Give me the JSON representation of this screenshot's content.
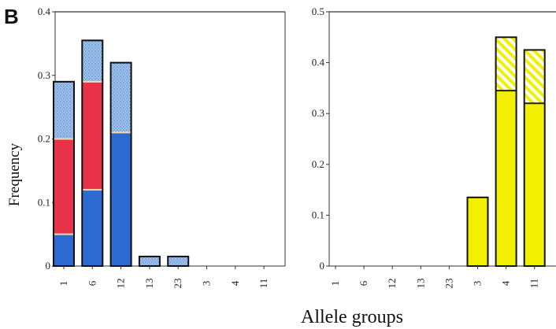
{
  "panel_label": "B",
  "chart_data": [
    {
      "type": "bar",
      "stacked": true,
      "categories": [
        "1",
        "6",
        "12",
        "13",
        "23",
        "3",
        "4",
        "11"
      ],
      "ylim": [
        0,
        0.4
      ],
      "yticks": [
        "0",
        "0.1",
        "0.2",
        "0.3",
        "0.4"
      ],
      "ylabel": "Frequency",
      "xlabel": "",
      "series": [
        {
          "color": "#2d6ad1",
          "pattern": "solid",
          "values": [
            0.05,
            0.12,
            0.21,
            0,
            0,
            0,
            0,
            0
          ]
        },
        {
          "color": "#e8324a",
          "pattern": "solid",
          "values": [
            0.15,
            0.17,
            0,
            0,
            0,
            0,
            0,
            0
          ]
        },
        {
          "color": "#8fb6e6",
          "pattern": "stipple",
          "values": [
            0.09,
            0.065,
            0.11,
            0.015,
            0.015,
            0,
            0,
            0
          ]
        }
      ]
    },
    {
      "type": "bar",
      "stacked": true,
      "categories": [
        "1",
        "6",
        "12",
        "13",
        "23",
        "3",
        "4",
        "11"
      ],
      "ylim": [
        0,
        0.5
      ],
      "yticks": [
        "0",
        "0.1",
        "0.2",
        "0.3",
        "0.4",
        "0.5"
      ],
      "ylabel": "",
      "xlabel": "",
      "series": [
        {
          "color": "#f2f000",
          "pattern": "solid",
          "values": [
            0,
            0,
            0,
            0,
            0,
            0.135,
            0.345,
            0.32
          ]
        },
        {
          "color": "#f2f000",
          "pattern": "hatch",
          "values": [
            0,
            0,
            0,
            0,
            0,
            0,
            0.105,
            0.105
          ]
        }
      ]
    }
  ],
  "shared_xlabel": "Allele groups"
}
